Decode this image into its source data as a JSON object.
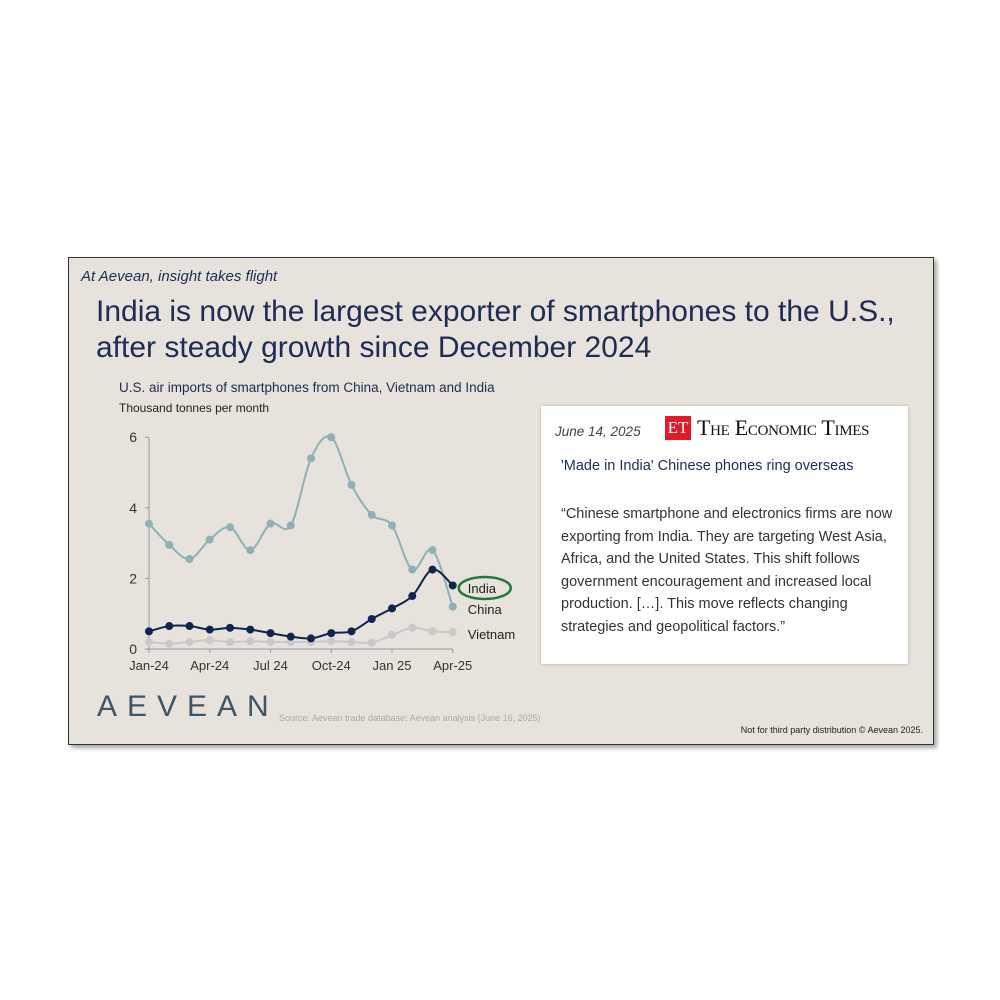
{
  "slide": {
    "tagline": "At Aevean, insight takes flight",
    "title": "India is now the largest exporter of smartphones to the U.S., after steady growth since December 2024",
    "source": "Source: Aevean trade database; Aevean analysis (June 16, 2025)",
    "disclaimer": "Not for third party distribution © Aevean 2025.",
    "logo": "AEVEAN"
  },
  "card": {
    "date": "June 14, 2025",
    "publisher_logo": "ET",
    "publisher": "The Economic Times",
    "headline": "'Made in India' Chinese phones ring overseas",
    "quote": "“Chinese smartphone and electronics firms are now exporting from India. They are targeting West Asia, Africa, and the United States. This shift follows government encouragement and increased local production. […]. This move reflects changing strategies and geopolitical factors.”"
  },
  "chart_data": {
    "type": "line",
    "title": "U.S. air imports of smartphones from China, Vietnam and India",
    "ylabel": "Thousand tonnes per month",
    "xlabel": "",
    "ylim": [
      0,
      6
    ],
    "yticks": [
      "0",
      "2",
      "4",
      "6"
    ],
    "xticks": [
      {
        "i": 0,
        "label": "Jan-24"
      },
      {
        "i": 3,
        "label": "Apr-24"
      },
      {
        "i": 6,
        "label": "Jul 24"
      },
      {
        "i": 9,
        "label": "Oct-24"
      },
      {
        "i": 12,
        "label": "Jan 25"
      },
      {
        "i": 15,
        "label": "Apr-25"
      }
    ],
    "x": [
      "Jan-24",
      "Feb-24",
      "Mar-24",
      "Apr-24",
      "May-24",
      "Jun-24",
      "Jul-24",
      "Aug-24",
      "Sep-24",
      "Oct-24",
      "Nov-24",
      "Dec-24",
      "Jan-25",
      "Feb-25",
      "Mar-25",
      "Apr-25"
    ],
    "series": [
      {
        "name": "China",
        "color": "#8db1b6",
        "values": [
          3.55,
          2.95,
          2.55,
          3.1,
          3.45,
          2.8,
          3.55,
          3.5,
          5.4,
          6.0,
          4.65,
          3.8,
          3.5,
          2.25,
          2.8,
          1.2
        ]
      },
      {
        "name": "Vietnam",
        "color": "#c9c9c9",
        "values": [
          0.2,
          0.15,
          0.2,
          0.25,
          0.2,
          0.22,
          0.2,
          0.2,
          0.2,
          0.22,
          0.2,
          0.18,
          0.4,
          0.6,
          0.5,
          0.48
        ]
      },
      {
        "name": "India",
        "color": "#102450",
        "values": [
          0.5,
          0.65,
          0.65,
          0.55,
          0.6,
          0.55,
          0.45,
          0.35,
          0.3,
          0.45,
          0.5,
          0.85,
          1.15,
          1.5,
          2.25,
          1.8
        ],
        "highlighted": true
      }
    ],
    "highlight_color": "#1f7a3a",
    "legend": "right-end labels"
  }
}
